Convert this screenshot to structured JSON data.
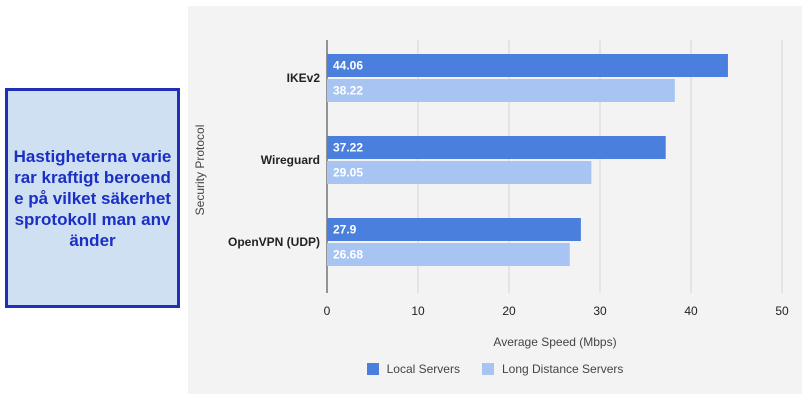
{
  "callout": {
    "text": "Hastigheterna varierar kraftigt beroende på vilket säkerhetsprotokoll man använder"
  },
  "colors": {
    "local": "#4a7fde",
    "long_distance": "#a8c4f3",
    "callout_border": "#1f2fb8",
    "callout_bg": "#cfe0f3"
  },
  "chart_data": {
    "type": "bar",
    "orientation": "horizontal",
    "categories": [
      "IKEv2",
      "Wireguard",
      "OpenVPN (UDP)"
    ],
    "series": [
      {
        "name": "Local Servers",
        "values": [
          44.06,
          37.22,
          27.9
        ]
      },
      {
        "name": "Long Distance Servers",
        "values": [
          38.22,
          29.05,
          26.68
        ]
      }
    ],
    "data_labels": [
      [
        "44.06",
        "37.22",
        "27.9"
      ],
      [
        "38.22",
        "29.05",
        "26.68"
      ]
    ],
    "xlabel": "Average Speed (Mbps)",
    "ylabel": "Security Protocol",
    "xlim": [
      0,
      50
    ],
    "xticks": [
      "0",
      "10",
      "20",
      "30",
      "40",
      "50"
    ],
    "grid": true,
    "legend": "bottom"
  }
}
